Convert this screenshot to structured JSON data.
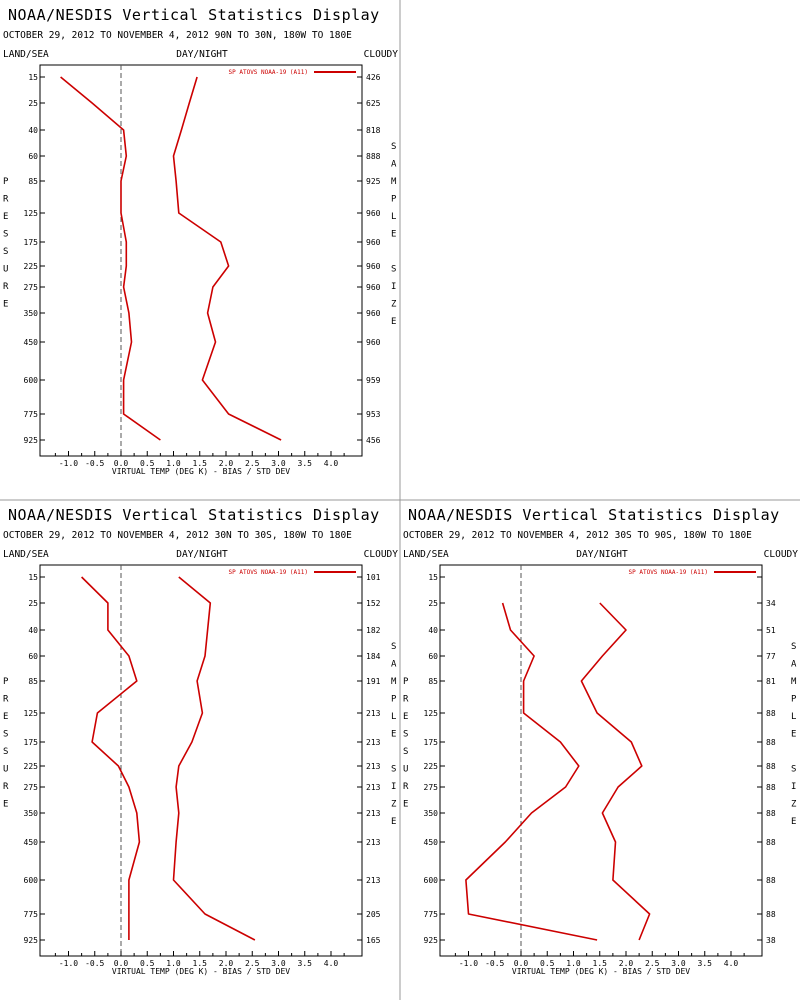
{
  "panels": [
    {
      "title": "NOAA/NESDIS Vertical Statistics Display",
      "subtitle": "OCTOBER 29, 2012 TO NOVEMBER 4, 2012  90N TO 30N, 180W TO 180E",
      "left_header": "LAND/SEA",
      "mid_header": "DAY/NIGHT",
      "right_header": "CLOUDY",
      "left_axis_label": [
        "P",
        "R",
        "E",
        "S",
        "S",
        "U",
        "R",
        "E"
      ],
      "right_axis_label": [
        "S",
        "A",
        "M",
        "P",
        "L",
        "E",
        "",
        "S",
        "I",
        "Z",
        "E"
      ],
      "xlabel": "VIRTUAL TEMP (DEG K) - BIAS / STD DEV",
      "legend": "SP ATOVS NOAA-19 (A11)",
      "sample_sizes": [
        "426",
        "625",
        "818",
        "888",
        "925",
        "960",
        "960",
        "960",
        "960",
        "960",
        "960",
        "959",
        "953",
        "456"
      ]
    },
    {
      "title": "NOAA/NESDIS Vertical Statistics Display",
      "subtitle": "OCTOBER 29, 2012 TO NOVEMBER 4, 2012  30N TO 30S, 180W TO 180E",
      "left_header": "LAND/SEA",
      "mid_header": "DAY/NIGHT",
      "right_header": "CLOUDY",
      "left_axis_label": [
        "P",
        "R",
        "E",
        "S",
        "S",
        "U",
        "R",
        "E"
      ],
      "right_axis_label": [
        "S",
        "A",
        "M",
        "P",
        "L",
        "E",
        "",
        "S",
        "I",
        "Z",
        "E"
      ],
      "xlabel": "VIRTUAL TEMP (DEG K) - BIAS / STD DEV",
      "legend": "SP ATOVS NOAA-19 (A11)",
      "sample_sizes": [
        "101",
        "152",
        "182",
        "184",
        "191",
        "213",
        "213",
        "213",
        "213",
        "213",
        "213",
        "213",
        "205",
        "165"
      ]
    },
    {
      "title": "NOAA/NESDIS Vertical Statistics Display",
      "subtitle": "OCTOBER 29, 2012 TO NOVEMBER 4, 2012  30S TO 90S, 180W TO 180E",
      "left_header": "LAND/SEA",
      "mid_header": "DAY/NIGHT",
      "right_header": "CLOUDY",
      "left_axis_label": [
        "P",
        "R",
        "E",
        "S",
        "S",
        "U",
        "R",
        "E"
      ],
      "right_axis_label": [
        "S",
        "A",
        "M",
        "P",
        "L",
        "E",
        "",
        "S",
        "I",
        "Z",
        "E"
      ],
      "xlabel": "VIRTUAL TEMP (DEG K) - BIAS / STD DEV",
      "legend": "SP ATOVS NOAA-19 (A11)",
      "sample_sizes": [
        "",
        "34",
        "51",
        "77",
        "81",
        "88",
        "88",
        "88",
        "88",
        "88",
        "88",
        "88",
        "88",
        "38"
      ]
    }
  ],
  "chart_data": [
    {
      "type": "line",
      "title": "NOAA/NESDIS Vertical Statistics Display",
      "subtitle": "OCTOBER 29, 2012 TO NOVEMBER 4, 2012  90N TO 30N, 180W TO 180E",
      "xlabel": "VIRTUAL TEMP (DEG K) - BIAS / STD DEV",
      "xlim": [
        -1.5,
        4.5
      ],
      "x_ticks": [
        "-1.0",
        "-0.5",
        "0.0",
        "0.5",
        "1.0",
        "1.5",
        "2.0",
        "2.5",
        "3.0",
        "3.5",
        "4.0"
      ],
      "pressure_levels": [
        "15",
        "25",
        "40",
        "60",
        "85",
        "125",
        "175",
        "225",
        "275",
        "350",
        "450",
        "600",
        "775",
        "925"
      ],
      "series": [
        {
          "name": "SP ATOVS NOAA-19 (A11)",
          "statistic": "bias",
          "color": "#cc0000",
          "values": [
            -1.15,
            -0.55,
            0.05,
            0.1,
            0.0,
            0.0,
            0.1,
            0.1,
            0.05,
            0.15,
            0.2,
            0.05,
            0.05,
            0.75
          ]
        },
        {
          "name": "SP ATOVS NOAA-19 (A11)",
          "statistic": "std_dev",
          "color": "#cc0000",
          "values": [
            1.45,
            1.3,
            1.15,
            1.0,
            1.05,
            1.1,
            1.9,
            2.05,
            1.75,
            1.65,
            1.8,
            1.55,
            2.05,
            3.05
          ]
        }
      ]
    },
    {
      "type": "line",
      "title": "NOAA/NESDIS Vertical Statistics Display",
      "subtitle": "OCTOBER 29, 2012 TO NOVEMBER 4, 2012  30N TO 30S, 180W TO 180E",
      "xlabel": "VIRTUAL TEMP (DEG K) - BIAS / STD DEV",
      "xlim": [
        -1.5,
        4.5
      ],
      "x_ticks": [
        "-1.0",
        "-0.5",
        "0.0",
        "0.5",
        "1.0",
        "1.5",
        "2.0",
        "2.5",
        "3.0",
        "3.5",
        "4.0"
      ],
      "pressure_levels": [
        "15",
        "25",
        "40",
        "60",
        "85",
        "125",
        "175",
        "225",
        "275",
        "350",
        "450",
        "600",
        "775",
        "925"
      ],
      "series": [
        {
          "name": "SP ATOVS NOAA-19 (A11)",
          "statistic": "bias",
          "color": "#cc0000",
          "values": [
            -0.75,
            -0.25,
            -0.25,
            0.15,
            0.3,
            -0.45,
            -0.55,
            -0.05,
            0.15,
            0.3,
            0.35,
            0.15,
            0.15,
            0.15
          ]
        },
        {
          "name": "SP ATOVS NOAA-19 (A11)",
          "statistic": "std_dev",
          "color": "#cc0000",
          "values": [
            1.1,
            1.7,
            1.65,
            1.6,
            1.45,
            1.55,
            1.35,
            1.1,
            1.05,
            1.1,
            1.05,
            1.0,
            1.6,
            2.55
          ]
        }
      ]
    },
    {
      "type": "line",
      "title": "NOAA/NESDIS Vertical Statistics Display",
      "subtitle": "OCTOBER 29, 2012 TO NOVEMBER 4, 2012  30S TO 90S, 180W TO 180E",
      "xlabel": "VIRTUAL TEMP (DEG K) - BIAS / STD DEV",
      "xlim": [
        -1.5,
        4.5
      ],
      "x_ticks": [
        "-1.0",
        "-0.5",
        "0.0",
        "0.5",
        "1.0",
        "1.5",
        "2.0",
        "2.5",
        "3.0",
        "3.5",
        "4.0"
      ],
      "pressure_levels": [
        "15",
        "25",
        "40",
        "60",
        "85",
        "125",
        "175",
        "225",
        "275",
        "350",
        "450",
        "600",
        "775",
        "925"
      ],
      "series": [
        {
          "name": "SP ATOVS NOAA-19 (A11)",
          "statistic": "bias",
          "color": "#cc0000",
          "values": [
            null,
            -0.35,
            -0.2,
            0.25,
            0.05,
            0.05,
            0.75,
            1.1,
            0.85,
            0.2,
            -0.3,
            -1.05,
            -1.0,
            1.45
          ]
        },
        {
          "name": "SP ATOVS NOAA-19 (A11)",
          "statistic": "std_dev",
          "color": "#cc0000",
          "values": [
            null,
            1.5,
            2.0,
            1.55,
            1.15,
            1.45,
            2.1,
            2.3,
            1.85,
            1.55,
            1.8,
            1.75,
            2.45,
            2.25
          ]
        }
      ]
    }
  ]
}
